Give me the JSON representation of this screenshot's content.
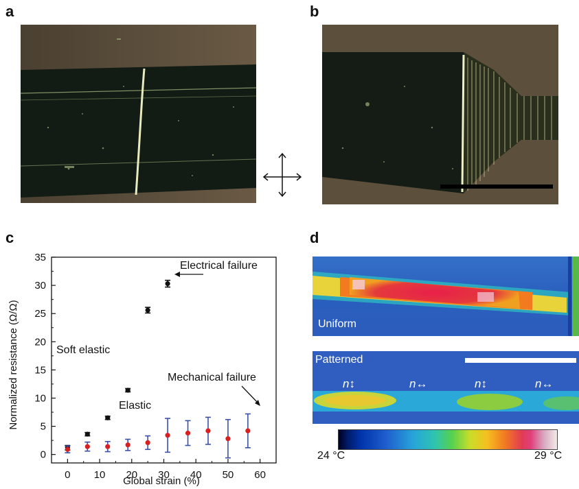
{
  "panels": {
    "a": "a",
    "b": "b",
    "c": "c",
    "d": "d"
  },
  "thermal": {
    "uniform_label": "Uniform",
    "patterned_label": "Patterned",
    "n_labels": [
      "n↕",
      "n↔",
      "n↕",
      "n↔"
    ],
    "colorbar_min": "24 °C",
    "colorbar_max": "29 °C"
  },
  "chart_data": {
    "type": "scatter",
    "xlabel": "Global strain (%)",
    "ylabel": "Normalized resistance (Ω/Ω)",
    "xlim": [
      -5,
      65
    ],
    "ylim": [
      -1.5,
      35
    ],
    "x_ticks": [
      "0",
      "10",
      "20",
      "30",
      "40",
      "50",
      "60"
    ],
    "y_ticks": [
      "0",
      "5",
      "10",
      "15",
      "20",
      "25",
      "30",
      "35"
    ],
    "series": [
      {
        "name": "Soft elastic",
        "color": "#111111",
        "points": [
          {
            "x": 0,
            "y": 1.2,
            "err": 0.4
          },
          {
            "x": 6.2,
            "y": 3.6,
            "err": 0.3
          },
          {
            "x": 12.5,
            "y": 6.5,
            "err": 0.3
          },
          {
            "x": 18.8,
            "y": 11.4,
            "err": 0.3
          },
          {
            "x": 25,
            "y": 25.6,
            "err": 0.5
          },
          {
            "x": 31.2,
            "y": 30.3,
            "err": 0.6
          }
        ]
      },
      {
        "name": "Elastic",
        "color": "#d92020",
        "err_color": "#3a4fa8",
        "points": [
          {
            "x": 0,
            "y": 0.9,
            "err": 0.6
          },
          {
            "x": 6.2,
            "y": 1.4,
            "err": 0.8
          },
          {
            "x": 12.5,
            "y": 1.4,
            "err": 0.9
          },
          {
            "x": 18.8,
            "y": 1.7,
            "err": 1.0
          },
          {
            "x": 25,
            "y": 2.1,
            "err": 1.2
          },
          {
            "x": 31.2,
            "y": 3.4,
            "err": 3.0
          },
          {
            "x": 37.5,
            "y": 3.8,
            "err": 2.2
          },
          {
            "x": 43.8,
            "y": 4.2,
            "err": 2.4
          },
          {
            "x": 50,
            "y": 2.8,
            "err": 3.4
          },
          {
            "x": 56.2,
            "y": 4.2,
            "err": 3.0
          }
        ]
      }
    ],
    "annotations": {
      "soft_elastic": "Soft elastic",
      "elastic": "Elastic",
      "electrical_failure": "Electrical failure",
      "mechanical_failure": "Mechanical failure"
    }
  }
}
